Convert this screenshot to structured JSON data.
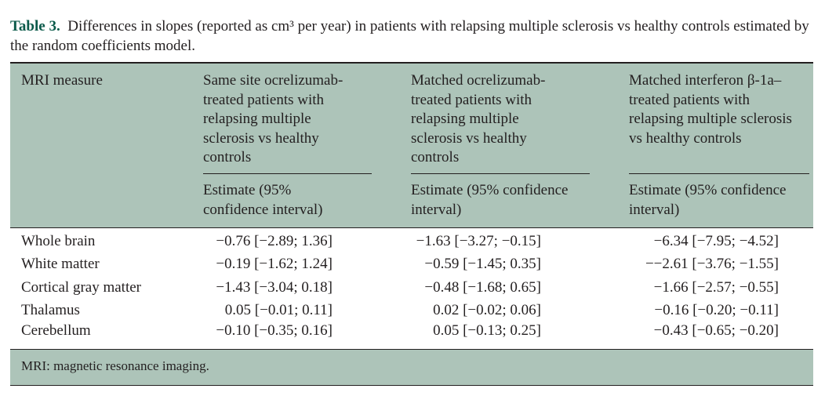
{
  "caption": {
    "label": "Table 3.",
    "text": "Differences in slopes (reported as cm³ per year) in patients with relapsing multiple sclerosis vs healthy controls estimated by the random coefficients model."
  },
  "header": {
    "col0": "MRI measure",
    "col1": "Same site ocrelizumab-treated patients with relapsing multiple sclerosis vs healthy controls",
    "col2": "Matched ocrelizumab-treated patients with relapsing multiple sclerosis vs healthy controls",
    "col3": "Matched interferon β-1a–treated patients with relapsing multiple sclerosis vs healthy controls",
    "sub1": "Estimate (95% confidence interval)",
    "sub2": "Estimate (95% confidence interval)",
    "sub3": "Estimate (95% confidence interval)"
  },
  "rows": [
    {
      "measure": "Whole brain",
      "c1": "−0.76 [−2.89; 1.36]",
      "c2": "−1.63 [−3.27; −0.15]",
      "c3": "−6.34 [−7.95; −4.52]"
    },
    {
      "measure": "White matter",
      "c1": "−0.19 [−1.62; 1.24]",
      "c2": "−0.59 [−1.45; 0.35]",
      "c3": "−−2.61 [−3.76; −1.55]"
    },
    {
      "measure": "Cortical gray matter",
      "c1": "−1.43 [−3.04; 0.18]",
      "c2": "−0.48 [−1.68; 0.65]",
      "c3": "−1.66 [−2.57; −0.55]"
    },
    {
      "measure": "Thalamus",
      "c1": "0.05 [−0.01; 0.11]",
      "c2": "0.02 [−0.02; 0.06]",
      "c3": "−0.16 [−0.20; −0.11]"
    },
    {
      "measure": "Cerebellum",
      "c1": "−0.10 [−0.35; 0.16]",
      "c2": "0.05 [−0.13; 0.25]",
      "c3": "−0.43 [−0.65; −0.20]"
    }
  ],
  "footnote": "MRI: magnetic resonance imaging."
}
